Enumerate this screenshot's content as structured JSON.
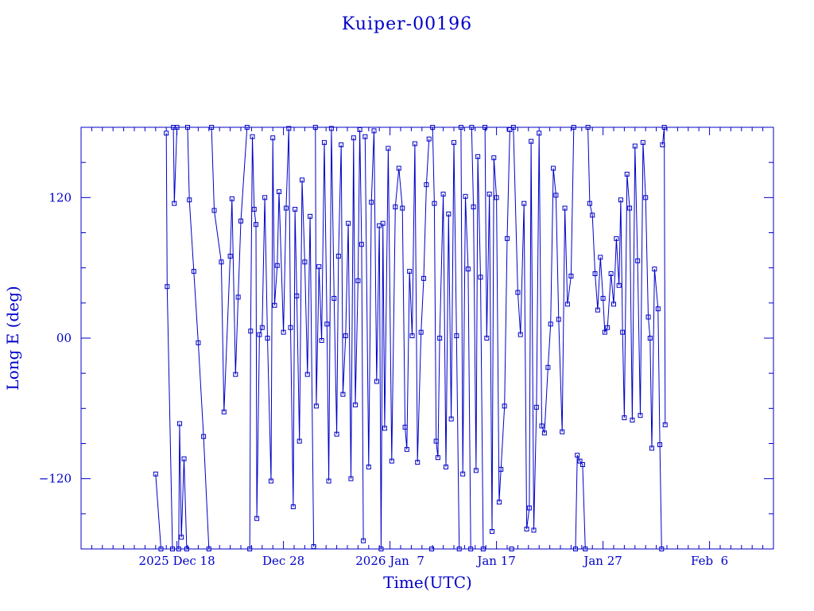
{
  "chart_data": {
    "type": "line",
    "title": "Kuiper-00196",
    "xlabel": "Time(UTC)",
    "ylabel": "Long E (deg)",
    "x_tick_labels": [
      "2025 Dec 18",
      "Dec 28",
      "2026 Jan  7",
      "Jan 17",
      "Jan 27",
      "Feb  6"
    ],
    "x_tick_dates": [
      "2025-12-18",
      "2025-12-28",
      "2026-01-07",
      "2026-01-17",
      "2026-01-27",
      "2026-02-06"
    ],
    "x_range": [
      "2025-12-09T00:00",
      "2026-02-12T00:00"
    ],
    "y_tick_labels": [
      "120",
      "00",
      "−120"
    ],
    "y_tick_values": [
      120,
      0,
      -120
    ],
    "ylim": [
      -180,
      180
    ],
    "grid": false,
    "colors": {
      "line": "#0000c8",
      "marker": "#0000c8",
      "text": "#0000c8",
      "frame": "#0000c8"
    },
    "series": [
      {
        "points": [
          [
            "2025-12-16T00:00",
            -116
          ],
          [
            "2025-12-16T12:00",
            -180
          ],
          [
            "2025-12-17T00:00",
            175
          ],
          [
            "2025-12-17T02:00",
            44
          ],
          [
            "2025-12-17T14:00",
            -180
          ],
          [
            "2025-12-17T16:00",
            180
          ],
          [
            "2025-12-17T18:00",
            115
          ],
          [
            "2025-12-18T00:00",
            180
          ],
          [
            "2025-12-18T04:00",
            -180
          ],
          [
            "2025-12-18T06:00",
            -73
          ],
          [
            "2025-12-18T10:00",
            -170
          ],
          [
            "2025-12-18T16:00",
            -103
          ],
          [
            "2025-12-18T22:00",
            -180
          ],
          [
            "2025-12-19T00:00",
            180
          ],
          [
            "2025-12-19T04:00",
            118
          ],
          [
            "2025-12-19T14:00",
            57
          ],
          [
            "2025-12-20T00:00",
            -4
          ],
          [
            "2025-12-20T12:00",
            -84
          ],
          [
            "2025-12-21T00:00",
            -180
          ],
          [
            "2025-12-21T06:00",
            180
          ],
          [
            "2025-12-21T12:00",
            109
          ],
          [
            "2025-12-22T04:00",
            65
          ],
          [
            "2025-12-22T10:00",
            -63
          ],
          [
            "2025-12-23T00:00",
            70
          ],
          [
            "2025-12-23T04:00",
            119
          ],
          [
            "2025-12-23T12:00",
            -31
          ],
          [
            "2025-12-23T18:00",
            35
          ],
          [
            "2025-12-24T00:00",
            100
          ],
          [
            "2025-12-24T14:00",
            180
          ],
          [
            "2025-12-24T20:00",
            -180
          ],
          [
            "2025-12-24T22:00",
            6
          ],
          [
            "2025-12-25T02:00",
            172
          ],
          [
            "2025-12-25T06:00",
            110
          ],
          [
            "2025-12-25T10:00",
            97
          ],
          [
            "2025-12-25T12:00",
            -154
          ],
          [
            "2025-12-25T18:00",
            3
          ],
          [
            "2025-12-26T00:00",
            9
          ],
          [
            "2025-12-26T06:00",
            120
          ],
          [
            "2025-12-26T12:00",
            0
          ],
          [
            "2025-12-26T20:00",
            -122
          ],
          [
            "2025-12-27T00:00",
            171
          ],
          [
            "2025-12-27T04:00",
            28
          ],
          [
            "2025-12-27T10:00",
            62
          ],
          [
            "2025-12-27T14:00",
            125
          ],
          [
            "2025-12-28T00:00",
            5
          ],
          [
            "2025-12-28T06:00",
            111
          ],
          [
            "2025-12-28T12:00",
            179
          ],
          [
            "2025-12-28T16:00",
            9
          ],
          [
            "2025-12-28T22:00",
            -144
          ],
          [
            "2025-12-29T02:00",
            110
          ],
          [
            "2025-12-29T06:00",
            36
          ],
          [
            "2025-12-29T12:00",
            -88
          ],
          [
            "2025-12-29T18:00",
            135
          ],
          [
            "2025-12-30T00:00",
            65
          ],
          [
            "2025-12-30T06:00",
            -31
          ],
          [
            "2025-12-30T12:00",
            104
          ],
          [
            "2025-12-30T20:00",
            -178
          ],
          [
            "2025-12-31T00:00",
            180
          ],
          [
            "2025-12-31T02:00",
            -58
          ],
          [
            "2025-12-31T08:00",
            61
          ],
          [
            "2025-12-31T14:00",
            -2
          ],
          [
            "2025-12-31T20:00",
            167
          ],
          [
            "2026-01-01T02:00",
            12
          ],
          [
            "2026-01-01T06:00",
            -122
          ],
          [
            "2026-01-01T12:00",
            179
          ],
          [
            "2026-01-01T18:00",
            34
          ],
          [
            "2026-01-02T00:00",
            -82
          ],
          [
            "2026-01-02T04:00",
            70
          ],
          [
            "2026-01-02T10:00",
            165
          ],
          [
            "2026-01-02T14:00",
            -48
          ],
          [
            "2026-01-02T20:00",
            2
          ],
          [
            "2026-01-03T02:00",
            98
          ],
          [
            "2026-01-03T08:00",
            -120
          ],
          [
            "2026-01-03T14:00",
            171
          ],
          [
            "2026-01-03T18:00",
            -57
          ],
          [
            "2026-01-04T00:00",
            49
          ],
          [
            "2026-01-04T04:00",
            178
          ],
          [
            "2026-01-04T08:00",
            80
          ],
          [
            "2026-01-04T12:00",
            -173
          ],
          [
            "2026-01-04T16:00",
            172
          ],
          [
            "2026-01-05T00:00",
            -110
          ],
          [
            "2026-01-05T06:00",
            116
          ],
          [
            "2026-01-05T12:00",
            177
          ],
          [
            "2026-01-05T18:00",
            -37
          ],
          [
            "2026-01-06T00:00",
            96
          ],
          [
            "2026-01-06T04:00",
            -180
          ],
          [
            "2026-01-06T08:00",
            98
          ],
          [
            "2026-01-06T12:00",
            -77
          ],
          [
            "2026-01-06T20:00",
            162
          ],
          [
            "2026-01-07T04:00",
            -105
          ],
          [
            "2026-01-07T12:00",
            112
          ],
          [
            "2026-01-07T20:00",
            145
          ],
          [
            "2026-01-08T04:00",
            111
          ],
          [
            "2026-01-08T10:00",
            -76
          ],
          [
            "2026-01-08T14:00",
            -95
          ],
          [
            "2026-01-08T20:00",
            57
          ],
          [
            "2026-01-09T02:00",
            2
          ],
          [
            "2026-01-09T08:00",
            166
          ],
          [
            "2026-01-09T14:00",
            -106
          ],
          [
            "2026-01-09T22:00",
            5
          ],
          [
            "2026-01-10T04:00",
            51
          ],
          [
            "2026-01-10T10:00",
            131
          ],
          [
            "2026-01-10T16:00",
            170
          ],
          [
            "2026-01-10T22:00",
            -180
          ],
          [
            "2026-01-11T00:00",
            180
          ],
          [
            "2026-01-11T04:00",
            115
          ],
          [
            "2026-01-11T08:00",
            -88
          ],
          [
            "2026-01-11T12:00",
            -102
          ],
          [
            "2026-01-11T16:00",
            0
          ],
          [
            "2026-01-12T00:00",
            123
          ],
          [
            "2026-01-12T06:00",
            -110
          ],
          [
            "2026-01-12T12:00",
            106
          ],
          [
            "2026-01-12T18:00",
            -69
          ],
          [
            "2026-01-13T00:00",
            167
          ],
          [
            "2026-01-13T06:00",
            2
          ],
          [
            "2026-01-13T12:00",
            -180
          ],
          [
            "2026-01-13T16:00",
            180
          ],
          [
            "2026-01-13T20:00",
            -116
          ],
          [
            "2026-01-14T02:00",
            121
          ],
          [
            "2026-01-14T08:00",
            59
          ],
          [
            "2026-01-14T14:00",
            -180
          ],
          [
            "2026-01-14T16:00",
            180
          ],
          [
            "2026-01-14T20:00",
            112
          ],
          [
            "2026-01-15T02:00",
            -113
          ],
          [
            "2026-01-15T06:00",
            155
          ],
          [
            "2026-01-15T12:00",
            52
          ],
          [
            "2026-01-15T18:00",
            -180
          ],
          [
            "2026-01-15T22:00",
            180
          ],
          [
            "2026-01-16T02:00",
            0
          ],
          [
            "2026-01-16T08:00",
            123
          ],
          [
            "2026-01-16T14:00",
            -165
          ],
          [
            "2026-01-16T18:00",
            154
          ],
          [
            "2026-01-17T00:00",
            120
          ],
          [
            "2026-01-17T06:00",
            -140
          ],
          [
            "2026-01-17T10:00",
            -112
          ],
          [
            "2026-01-17T18:00",
            -58
          ],
          [
            "2026-01-18T00:00",
            85
          ],
          [
            "2026-01-18T06:00",
            178
          ],
          [
            "2026-01-18T10:00",
            -180
          ],
          [
            "2026-01-18T14:00",
            180
          ],
          [
            "2026-01-19T00:00",
            39
          ],
          [
            "2026-01-19T06:00",
            3
          ],
          [
            "2026-01-19T14:00",
            115
          ],
          [
            "2026-01-19T20:00",
            -163
          ],
          [
            "2026-01-20T02:00",
            -145
          ],
          [
            "2026-01-20T06:00",
            168
          ],
          [
            "2026-01-20T12:00",
            -164
          ],
          [
            "2026-01-20T18:00",
            -59
          ],
          [
            "2026-01-21T00:00",
            175
          ],
          [
            "2026-01-21T06:00",
            -75
          ],
          [
            "2026-01-21T12:00",
            -81
          ],
          [
            "2026-01-21T20:00",
            -25
          ],
          [
            "2026-01-22T02:00",
            12
          ],
          [
            "2026-01-22T08:00",
            145
          ],
          [
            "2026-01-22T14:00",
            122
          ],
          [
            "2026-01-22T20:00",
            16
          ],
          [
            "2026-01-23T04:00",
            -80
          ],
          [
            "2026-01-23T10:00",
            111
          ],
          [
            "2026-01-23T16:00",
            29
          ],
          [
            "2026-01-24T00:00",
            53
          ],
          [
            "2026-01-24T06:00",
            180
          ],
          [
            "2026-01-24T10:00",
            -180
          ],
          [
            "2026-01-24T14:00",
            -100
          ],
          [
            "2026-01-24T20:00",
            -105
          ],
          [
            "2026-01-25T02:00",
            -108
          ],
          [
            "2026-01-25T08:00",
            -180
          ],
          [
            "2026-01-25T14:00",
            180
          ],
          [
            "2026-01-25T18:00",
            115
          ],
          [
            "2026-01-26T00:00",
            105
          ],
          [
            "2026-01-26T06:00",
            55
          ],
          [
            "2026-01-26T12:00",
            24
          ],
          [
            "2026-01-26T18:00",
            69
          ],
          [
            "2026-01-27T00:00",
            34
          ],
          [
            "2026-01-27T04:00",
            5
          ],
          [
            "2026-01-27T10:00",
            9
          ],
          [
            "2026-01-27T18:00",
            55
          ],
          [
            "2026-01-28T00:00",
            29
          ],
          [
            "2026-01-28T06:00",
            85
          ],
          [
            "2026-01-28T12:00",
            45
          ],
          [
            "2026-01-28T16:00",
            118
          ],
          [
            "2026-01-28T20:00",
            5
          ],
          [
            "2026-01-29T00:00",
            -68
          ],
          [
            "2026-01-29T06:00",
            140
          ],
          [
            "2026-01-29T12:00",
            111
          ],
          [
            "2026-01-29T18:00",
            -70
          ],
          [
            "2026-01-30T00:00",
            164
          ],
          [
            "2026-01-30T06:00",
            66
          ],
          [
            "2026-01-30T12:00",
            -66
          ],
          [
            "2026-01-30T18:00",
            167
          ],
          [
            "2026-01-31T00:00",
            120
          ],
          [
            "2026-01-31T06:00",
            18
          ],
          [
            "2026-01-31T10:00",
            0
          ],
          [
            "2026-01-31T14:00",
            -94
          ],
          [
            "2026-01-31T20:00",
            59
          ],
          [
            "2026-02-01T04:00",
            25
          ],
          [
            "2026-02-01T08:00",
            -91
          ],
          [
            "2026-02-01T12:00",
            -180
          ],
          [
            "2026-02-01T14:00",
            165
          ],
          [
            "2026-02-01T18:00",
            180
          ],
          [
            "2026-02-01T20:00",
            -74
          ]
        ]
      }
    ]
  }
}
